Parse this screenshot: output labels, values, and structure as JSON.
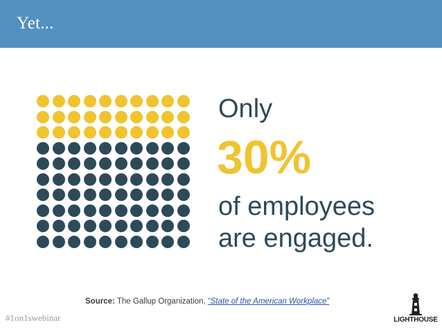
{
  "header": {
    "title": "Yet..."
  },
  "dot_grid": {
    "rows": 10,
    "cols": 10,
    "highlighted_rows": 3,
    "highlight_color": "#f0c330",
    "base_color": "#2d4a5a"
  },
  "statistic": {
    "prefix": "Only",
    "value": "30%",
    "line1": "of employees",
    "line2": "are engaged."
  },
  "source": {
    "label": "Source:",
    "org": " The Gallup Organization, ",
    "link_text": "“State of the American Workplace”"
  },
  "footer": {
    "hashtag": "#1on1swebinar"
  },
  "logo": {
    "text": "LIGHTHOUSE",
    "icon": "lighthouse-icon"
  },
  "colors": {
    "header_bg": "#5390bf",
    "accent_yellow": "#f0c330",
    "dark_slate": "#2d4a5a",
    "link_blue": "#2a4fb0"
  }
}
